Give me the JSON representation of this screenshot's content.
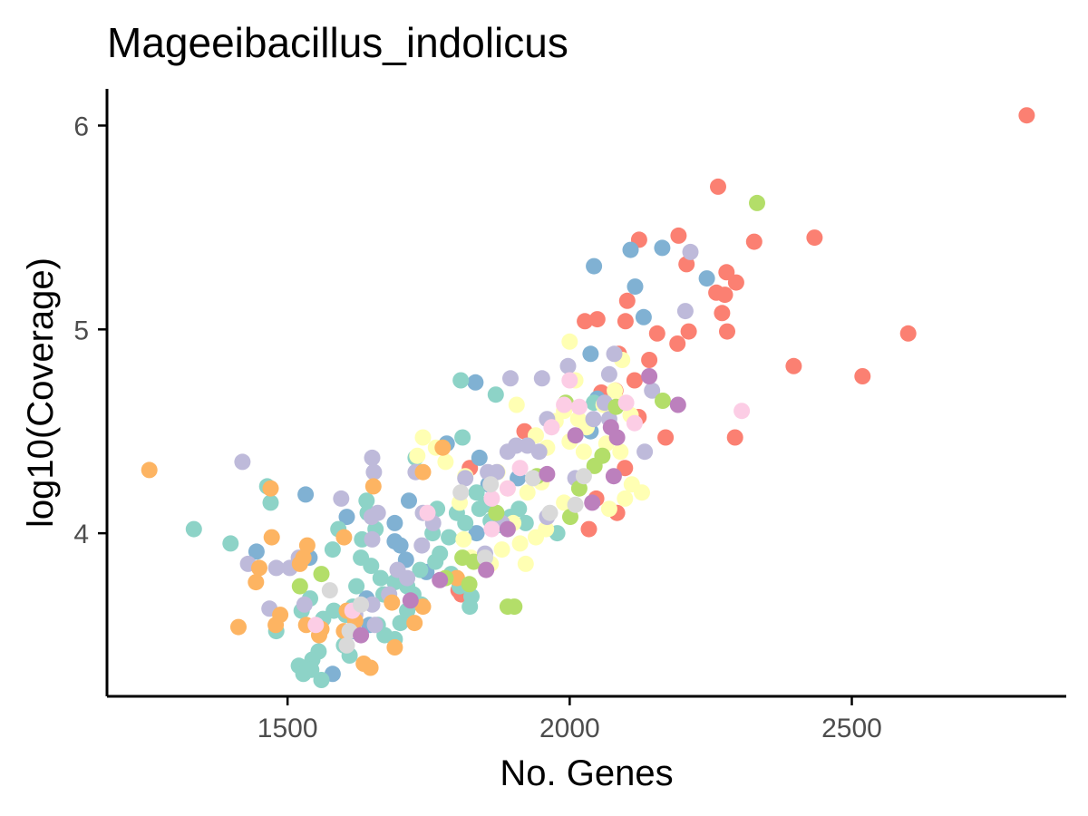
{
  "chart_data": {
    "type": "scatter",
    "title": "Mageeibacillus_indolicus",
    "xlabel": "No. Genes",
    "ylabel": "log10(Coverage)",
    "xlim": [
      1180,
      2880
    ],
    "ylim": [
      3.2,
      6.18
    ],
    "xticks": [
      1500,
      2000,
      2500
    ],
    "yticks": [
      4,
      5,
      6
    ],
    "grid": false,
    "legend": "none",
    "palette": [
      "#fb8072",
      "#80b1d3",
      "#8dd3c7",
      "#ffffb3",
      "#bebada",
      "#fdb462",
      "#b3de69",
      "#fccde5",
      "#d9d9d9",
      "#bc80bd"
    ],
    "series": [
      {
        "color": "#fb8072",
        "points": [
          [
            2810,
            6.05
          ],
          [
            2263,
            5.7
          ],
          [
            2193,
            5.46
          ],
          [
            2123,
            5.44
          ],
          [
            2327,
            5.43
          ],
          [
            2434,
            5.45
          ],
          [
            2278,
            5.28
          ],
          [
            2295,
            5.23
          ],
          [
            2260,
            5.18
          ],
          [
            2275,
            5.17
          ],
          [
            2207,
            5.32
          ],
          [
            2102,
            5.14
          ],
          [
            2270,
            5.08
          ],
          [
            2049,
            5.05
          ],
          [
            2027,
            5.04
          ],
          [
            2099,
            5.04
          ],
          [
            2279,
            4.99
          ],
          [
            2211,
            4.99
          ],
          [
            2155,
            4.98
          ],
          [
            2191,
            4.93
          ],
          [
            2600,
            4.98
          ],
          [
            2087,
            4.88
          ],
          [
            2141,
            4.85
          ],
          [
            2397,
            4.82
          ],
          [
            2519,
            4.77
          ],
          [
            2115,
            4.75
          ],
          [
            2081,
            4.7
          ],
          [
            2056,
            4.69
          ],
          [
            2122,
            4.57
          ],
          [
            1920,
            4.5
          ],
          [
            2170,
            4.47
          ],
          [
            2293,
            4.47
          ],
          [
            1823,
            4.32
          ],
          [
            2098,
            4.32
          ],
          [
            2047,
            4.17
          ],
          [
            2034,
            4.02
          ],
          [
            2084,
            4.1
          ],
          [
            1808,
            3.7
          ],
          [
            1803,
            3.72
          ]
        ]
      },
      {
        "color": "#80b1d3",
        "points": [
          [
            2164,
            5.4
          ],
          [
            2108,
            5.39
          ],
          [
            2043,
            5.31
          ],
          [
            2243,
            5.25
          ],
          [
            2116,
            5.21
          ],
          [
            2131,
            5.06
          ],
          [
            2037,
            4.88
          ],
          [
            2049,
            4.66
          ],
          [
            1833,
            4.74
          ],
          [
            2037,
            4.5
          ],
          [
            1782,
            4.44
          ],
          [
            1840,
            4.37
          ],
          [
            1908,
            4.27
          ],
          [
            1532,
            4.19
          ],
          [
            1715,
            4.16
          ],
          [
            1856,
            4.24
          ],
          [
            1605,
            4.08
          ],
          [
            1690,
            4.05
          ],
          [
            1445,
            3.91
          ],
          [
            1539,
            3.88
          ],
          [
            1690,
            3.96
          ],
          [
            1700,
            3.94
          ],
          [
            1710,
            3.87
          ],
          [
            1835,
            4.0
          ],
          [
            1746,
            3.81
          ],
          [
            1617,
            3.52
          ],
          [
            1645,
            3.55
          ],
          [
            1580,
            3.31
          ],
          [
            1640,
            3.68
          ]
        ]
      },
      {
        "color": "#8dd3c7",
        "points": [
          [
            1334,
            4.02
          ],
          [
            1399,
            3.95
          ],
          [
            1464,
            4.23
          ],
          [
            1470,
            4.15
          ],
          [
            1807,
            4.75
          ],
          [
            1810,
            4.47
          ],
          [
            1869,
            4.68
          ],
          [
            1640,
            4.16
          ],
          [
            1642,
            4.1
          ],
          [
            1727,
            4.37
          ],
          [
            1757,
            4.0
          ],
          [
            1765,
            4.12
          ],
          [
            1800,
            4.1
          ],
          [
            1815,
            4.05
          ],
          [
            1840,
            4.12
          ],
          [
            1860,
            4.06
          ],
          [
            1875,
            4.04
          ],
          [
            1895,
            4.08
          ],
          [
            1910,
            4.12
          ],
          [
            1922,
            4.05
          ],
          [
            1978,
            4.0
          ],
          [
            2043,
            4.64
          ],
          [
            1835,
            4.2
          ],
          [
            1850,
            4.14
          ],
          [
            1870,
            4.1
          ],
          [
            1630,
            3.88
          ],
          [
            1648,
            3.84
          ],
          [
            1665,
            3.78
          ],
          [
            1690,
            3.76
          ],
          [
            1712,
            3.74
          ],
          [
            1735,
            3.82
          ],
          [
            1762,
            3.86
          ],
          [
            1790,
            3.8
          ],
          [
            1805,
            3.74
          ],
          [
            1826,
            3.69
          ],
          [
            1622,
            3.74
          ],
          [
            1616,
            3.64
          ],
          [
            1603,
            3.6
          ],
          [
            1582,
            3.62
          ],
          [
            1563,
            3.58
          ],
          [
            1555,
            3.42
          ],
          [
            1544,
            3.38
          ],
          [
            1520,
            3.35
          ],
          [
            1542,
            3.33
          ],
          [
            1528,
            3.31
          ],
          [
            1560,
            3.28
          ],
          [
            1600,
            3.45
          ],
          [
            1610,
            3.4
          ],
          [
            1660,
            3.55
          ],
          [
            1672,
            3.5
          ],
          [
            1690,
            3.48
          ],
          [
            1700,
            3.56
          ],
          [
            1712,
            3.62
          ],
          [
            1723,
            3.7
          ],
          [
            1737,
            3.65
          ],
          [
            1770,
            3.9
          ],
          [
            1786,
            3.98
          ],
          [
            1823,
            3.64
          ],
          [
            1480,
            3.52
          ],
          [
            1525,
            3.62
          ],
          [
            1540,
            3.68
          ],
          [
            1580,
            3.92
          ],
          [
            1590,
            4.02
          ],
          [
            1632,
            3.97
          ],
          [
            1656,
            4.02
          ],
          [
            1670,
            3.7
          ]
        ]
      },
      {
        "color": "#ffffb3",
        "points": [
          [
            2000,
            4.94
          ],
          [
            2093,
            4.85
          ],
          [
            2010,
            4.75
          ],
          [
            2080,
            4.7
          ],
          [
            1906,
            4.63
          ],
          [
            2060,
            4.63
          ],
          [
            1990,
            4.6
          ],
          [
            2015,
            4.56
          ],
          [
            2030,
            4.52
          ],
          [
            1940,
            4.48
          ],
          [
            1975,
            4.55
          ],
          [
            2092,
            4.64
          ],
          [
            2108,
            4.58
          ],
          [
            2065,
            4.44
          ],
          [
            2090,
            4.4
          ],
          [
            1740,
            4.47
          ],
          [
            1763,
            4.42
          ],
          [
            1730,
            4.38
          ],
          [
            1780,
            4.35
          ],
          [
            1815,
            4.28
          ],
          [
            1872,
            4.3
          ],
          [
            1960,
            4.42
          ],
          [
            2000,
            4.45
          ],
          [
            2025,
            4.4
          ],
          [
            1890,
            4.22
          ],
          [
            1925,
            4.2
          ],
          [
            1950,
            4.25
          ],
          [
            2110,
            4.24
          ],
          [
            2128,
            4.2
          ],
          [
            2098,
            4.17
          ],
          [
            2070,
            4.12
          ],
          [
            1990,
            4.15
          ],
          [
            1900,
            4.05
          ],
          [
            1912,
            3.95
          ],
          [
            1922,
            3.85
          ],
          [
            1940,
            3.98
          ],
          [
            1958,
            4.02
          ],
          [
            1880,
            3.92
          ],
          [
            1860,
            3.85
          ],
          [
            1825,
            3.88
          ],
          [
            1805,
            4.15
          ],
          [
            1812,
            3.97
          ]
        ]
      },
      {
        "color": "#bebada",
        "points": [
          [
            2214,
            5.38
          ],
          [
            2205,
            5.09
          ],
          [
            2079,
            4.88
          ],
          [
            1997,
            4.82
          ],
          [
            2070,
            4.78
          ],
          [
            1951,
            4.76
          ],
          [
            1895,
            4.76
          ],
          [
            2146,
            4.7
          ],
          [
            2062,
            4.64
          ],
          [
            2042,
            4.56
          ],
          [
            2070,
            4.56
          ],
          [
            1960,
            4.56
          ],
          [
            2133,
            4.4
          ],
          [
            1420,
            4.35
          ],
          [
            1650,
            4.37
          ],
          [
            1653,
            4.3
          ],
          [
            1727,
            4.3
          ],
          [
            1815,
            4.27
          ],
          [
            1855,
            4.3
          ],
          [
            1871,
            4.3
          ],
          [
            1890,
            4.4
          ],
          [
            1905,
            4.43
          ],
          [
            1925,
            4.43
          ],
          [
            1946,
            4.4
          ],
          [
            1595,
            4.17
          ],
          [
            1649,
            4.08
          ],
          [
            1660,
            4.1
          ],
          [
            1740,
            4.1
          ],
          [
            1758,
            4.05
          ],
          [
            1650,
            3.97
          ],
          [
            1738,
            3.94
          ],
          [
            1480,
            3.83
          ],
          [
            1504,
            3.83
          ],
          [
            1430,
            3.85
          ],
          [
            1520,
            3.88
          ],
          [
            1468,
            3.63
          ],
          [
            1530,
            3.65
          ],
          [
            1620,
            3.6
          ],
          [
            1650,
            3.65
          ],
          [
            1680,
            3.7
          ],
          [
            1695,
            3.82
          ],
          [
            1712,
            3.78
          ],
          [
            1850,
            3.9
          ],
          [
            1880,
            4.05
          ],
          [
            1960,
            4.08
          ],
          [
            2010,
            4.27
          ],
          [
            1655,
            3.55
          ]
        ]
      },
      {
        "color": "#fdb462",
        "points": [
          [
            1255,
            4.31
          ],
          [
            1470,
            4.22
          ],
          [
            1652,
            4.23
          ],
          [
            1472,
            3.98
          ],
          [
            1535,
            3.94
          ],
          [
            1528,
            3.88
          ],
          [
            1522,
            3.85
          ],
          [
            1600,
            3.98
          ],
          [
            1775,
            4.42
          ],
          [
            1740,
            4.3
          ],
          [
            1450,
            3.83
          ],
          [
            1444,
            3.76
          ],
          [
            1487,
            3.6
          ],
          [
            1479,
            3.55
          ],
          [
            1413,
            3.54
          ],
          [
            1533,
            3.55
          ],
          [
            1556,
            3.5
          ],
          [
            1600,
            3.52
          ],
          [
            1605,
            3.62
          ],
          [
            1635,
            3.36
          ],
          [
            1647,
            3.34
          ],
          [
            1685,
            3.66
          ],
          [
            1690,
            3.44
          ],
          [
            1725,
            3.56
          ],
          [
            1740,
            3.64
          ],
          [
            1800,
            3.78
          ],
          [
            1560,
            3.53
          ],
          [
            1620,
            3.57
          ]
        ]
      },
      {
        "color": "#b3de69",
        "points": [
          [
            2332,
            5.62
          ],
          [
            2165,
            4.65
          ],
          [
            1993,
            4.64
          ],
          [
            2082,
            4.62
          ],
          [
            2058,
            4.38
          ],
          [
            2044,
            4.33
          ],
          [
            2017,
            4.22
          ],
          [
            1942,
            4.28
          ],
          [
            1870,
            4.1
          ],
          [
            2001,
            4.08
          ],
          [
            1810,
            3.88
          ],
          [
            1830,
            3.86
          ],
          [
            1822,
            3.75
          ],
          [
            1780,
            3.78
          ],
          [
            1522,
            3.74
          ],
          [
            1560,
            3.8
          ],
          [
            1890,
            3.64
          ],
          [
            1902,
            3.64
          ]
        ]
      },
      {
        "color": "#fccde5",
        "points": [
          [
            2000,
            4.75
          ],
          [
            2017,
            4.62
          ],
          [
            1990,
            4.63
          ],
          [
            2100,
            4.64
          ],
          [
            1968,
            4.52
          ],
          [
            2115,
            4.54
          ],
          [
            2305,
            4.6
          ],
          [
            1862,
            4.17
          ],
          [
            1890,
            4.22
          ],
          [
            1912,
            4.32
          ],
          [
            1748,
            4.1
          ],
          [
            1862,
            4.02
          ],
          [
            1550,
            3.55
          ],
          [
            1615,
            3.62
          ]
        ]
      },
      {
        "color": "#d9d9d9",
        "points": [
          [
            1575,
            3.72
          ],
          [
            1605,
            3.45
          ],
          [
            1610,
            3.52
          ],
          [
            1630,
            3.65
          ],
          [
            1807,
            4.2
          ],
          [
            1860,
            4.24
          ],
          [
            1965,
            4.1
          ],
          [
            2010,
            4.14
          ],
          [
            2025,
            4.28
          ],
          [
            1935,
            4.27
          ],
          [
            1850,
            3.88
          ]
        ]
      },
      {
        "color": "#bc80bd",
        "points": [
          [
            2141,
            4.77
          ],
          [
            2192,
            4.63
          ],
          [
            2073,
            4.52
          ],
          [
            2084,
            4.47
          ],
          [
            2010,
            4.48
          ],
          [
            1960,
            4.29
          ],
          [
            2078,
            4.28
          ],
          [
            2040,
            4.15
          ],
          [
            1890,
            4.02
          ],
          [
            1852,
            3.82
          ],
          [
            1770,
            3.77
          ],
          [
            1630,
            3.5
          ],
          [
            1718,
            3.67
          ]
        ]
      }
    ]
  }
}
